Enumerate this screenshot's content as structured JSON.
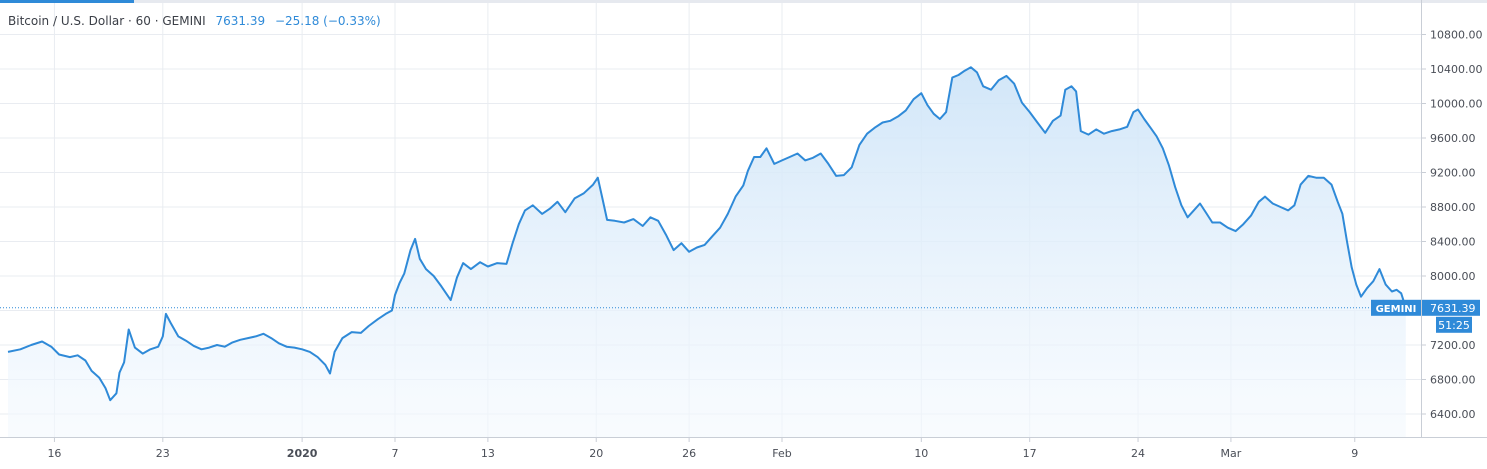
{
  "legend": {
    "symbol": "Bitcoin / U.S. Dollar · 60 · GEMINI",
    "last": "7631.39",
    "change": "−25.18 (−0.33%)"
  },
  "price_tag": {
    "exchange": "GEMINI",
    "price": "7631.39",
    "countdown": "51:25"
  },
  "colors": {
    "line": "#2f8ad8",
    "fill_top": "#cfe5f8",
    "fill_bottom": "#f4f9fe",
    "grid": "#e9ecf1",
    "tag_bg": "#2f8ad8",
    "tag_text": "#ffffff"
  },
  "chart_data": {
    "type": "area",
    "title": "",
    "xlabel": "",
    "ylabel": "",
    "ylim": [
      6150,
      11000
    ],
    "y_ticks": [
      6400,
      6800,
      7200,
      7600,
      8000,
      8400,
      8800,
      9200,
      9600,
      10000,
      10400,
      10800
    ],
    "y_tick_labels": [
      "6400.00",
      "6800.00",
      "7200.00",
      "7600.00",
      "8000.00",
      "8400.00",
      "8800.00",
      "9200.00",
      "9600.00",
      "10000.00",
      "10400.00",
      "10800.00"
    ],
    "x_ticks": [
      {
        "label": "16",
        "day": 2,
        "bold": false
      },
      {
        "label": "23",
        "day": 9,
        "bold": false
      },
      {
        "label": "2020",
        "day": 18,
        "bold": true
      },
      {
        "label": "7",
        "day": 24,
        "bold": false
      },
      {
        "label": "13",
        "day": 30,
        "bold": false
      },
      {
        "label": "20",
        "day": 37,
        "bold": false
      },
      {
        "label": "26",
        "day": 43,
        "bold": false
      },
      {
        "label": "Feb",
        "day": 49,
        "bold": false
      },
      {
        "label": "10",
        "day": 58,
        "bold": false
      },
      {
        "label": "17",
        "day": 65,
        "bold": false
      },
      {
        "label": "24",
        "day": 72,
        "bold": false
      },
      {
        "label": "Mar",
        "day": 78,
        "bold": false
      },
      {
        "label": "9",
        "day": 86,
        "bold": false
      }
    ],
    "x_range": [
      -1,
      89.3
    ],
    "series": [
      {
        "values": [
          [
            -1.0,
            7120
          ],
          [
            -0.2,
            7150
          ],
          [
            0.5,
            7200
          ],
          [
            1.2,
            7240
          ],
          [
            1.8,
            7180
          ],
          [
            2.3,
            7090
          ],
          [
            3.0,
            7060
          ],
          [
            3.5,
            7080
          ],
          [
            4.0,
            7020
          ],
          [
            4.4,
            6900
          ],
          [
            4.9,
            6820
          ],
          [
            5.3,
            6700
          ],
          [
            5.6,
            6560
          ],
          [
            6.0,
            6640
          ],
          [
            6.2,
            6880
          ],
          [
            6.5,
            7000
          ],
          [
            6.8,
            7380
          ],
          [
            7.2,
            7170
          ],
          [
            7.7,
            7100
          ],
          [
            8.2,
            7150
          ],
          [
            8.7,
            7180
          ],
          [
            9.0,
            7300
          ],
          [
            9.2,
            7560
          ],
          [
            9.5,
            7460
          ],
          [
            10.0,
            7300
          ],
          [
            10.5,
            7250
          ],
          [
            11.0,
            7190
          ],
          [
            11.5,
            7150
          ],
          [
            12.0,
            7170
          ],
          [
            12.5,
            7200
          ],
          [
            13.0,
            7180
          ],
          [
            13.5,
            7230
          ],
          [
            14.0,
            7260
          ],
          [
            14.5,
            7280
          ],
          [
            15.0,
            7300
          ],
          [
            15.5,
            7330
          ],
          [
            16.0,
            7280
          ],
          [
            16.5,
            7220
          ],
          [
            17.0,
            7180
          ],
          [
            17.5,
            7170
          ],
          [
            18.0,
            7150
          ],
          [
            18.5,
            7120
          ],
          [
            19.0,
            7060
          ],
          [
            19.5,
            6970
          ],
          [
            19.8,
            6870
          ],
          [
            20.1,
            7120
          ],
          [
            20.6,
            7280
          ],
          [
            21.2,
            7350
          ],
          [
            21.8,
            7340
          ],
          [
            22.3,
            7420
          ],
          [
            22.9,
            7500
          ],
          [
            23.4,
            7560
          ],
          [
            23.8,
            7600
          ],
          [
            24.0,
            7780
          ],
          [
            24.3,
            7920
          ],
          [
            24.6,
            8030
          ],
          [
            25.0,
            8300
          ],
          [
            25.3,
            8430
          ],
          [
            25.6,
            8200
          ],
          [
            26.0,
            8080
          ],
          [
            26.5,
            8000
          ],
          [
            27.0,
            7880
          ],
          [
            27.6,
            7720
          ],
          [
            28.0,
            7980
          ],
          [
            28.4,
            8150
          ],
          [
            28.9,
            8080
          ],
          [
            29.5,
            8160
          ],
          [
            30.0,
            8110
          ],
          [
            30.6,
            8150
          ],
          [
            31.2,
            8140
          ],
          [
            31.6,
            8380
          ],
          [
            32.0,
            8600
          ],
          [
            32.4,
            8760
          ],
          [
            32.9,
            8820
          ],
          [
            33.5,
            8720
          ],
          [
            34.0,
            8780
          ],
          [
            34.5,
            8860
          ],
          [
            35.0,
            8740
          ],
          [
            35.6,
            8900
          ],
          [
            36.2,
            8960
          ],
          [
            36.8,
            9060
          ],
          [
            37.1,
            9140
          ],
          [
            37.4,
            8900
          ],
          [
            37.7,
            8650
          ],
          [
            38.2,
            8640
          ],
          [
            38.8,
            8620
          ],
          [
            39.4,
            8660
          ],
          [
            40.0,
            8580
          ],
          [
            40.5,
            8680
          ],
          [
            41.0,
            8640
          ],
          [
            41.5,
            8480
          ],
          [
            42.0,
            8300
          ],
          [
            42.5,
            8380
          ],
          [
            43.0,
            8280
          ],
          [
            43.5,
            8330
          ],
          [
            44.0,
            8360
          ],
          [
            44.5,
            8460
          ],
          [
            45.0,
            8560
          ],
          [
            45.5,
            8720
          ],
          [
            46.0,
            8920
          ],
          [
            46.5,
            9050
          ],
          [
            46.8,
            9220
          ],
          [
            47.2,
            9380
          ],
          [
            47.6,
            9380
          ],
          [
            48.0,
            9480
          ],
          [
            48.5,
            9300
          ],
          [
            49.0,
            9340
          ],
          [
            49.5,
            9380
          ],
          [
            50.0,
            9420
          ],
          [
            50.5,
            9340
          ],
          [
            51.0,
            9370
          ],
          [
            51.5,
            9420
          ],
          [
            52.0,
            9300
          ],
          [
            52.5,
            9160
          ],
          [
            53.0,
            9170
          ],
          [
            53.5,
            9260
          ],
          [
            54.0,
            9520
          ],
          [
            54.5,
            9650
          ],
          [
            55.0,
            9720
          ],
          [
            55.5,
            9780
          ],
          [
            56.0,
            9800
          ],
          [
            56.5,
            9850
          ],
          [
            57.0,
            9920
          ],
          [
            57.5,
            10050
          ],
          [
            58.0,
            10120
          ],
          [
            58.4,
            9980
          ],
          [
            58.8,
            9880
          ],
          [
            59.2,
            9820
          ],
          [
            59.6,
            9900
          ],
          [
            60.0,
            10300
          ],
          [
            60.4,
            10330
          ],
          [
            60.8,
            10380
          ],
          [
            61.2,
            10420
          ],
          [
            61.6,
            10360
          ],
          [
            62.0,
            10200
          ],
          [
            62.5,
            10160
          ],
          [
            63.0,
            10270
          ],
          [
            63.5,
            10320
          ],
          [
            64.0,
            10230
          ],
          [
            64.5,
            10010
          ],
          [
            65.0,
            9900
          ],
          [
            65.5,
            9780
          ],
          [
            66.0,
            9660
          ],
          [
            66.5,
            9800
          ],
          [
            67.0,
            9860
          ],
          [
            67.3,
            10160
          ],
          [
            67.7,
            10200
          ],
          [
            68.0,
            10140
          ],
          [
            68.3,
            9680
          ],
          [
            68.8,
            9640
          ],
          [
            69.3,
            9700
          ],
          [
            69.8,
            9650
          ],
          [
            70.3,
            9680
          ],
          [
            70.8,
            9700
          ],
          [
            71.3,
            9730
          ],
          [
            71.7,
            9900
          ],
          [
            72.0,
            9930
          ],
          [
            72.4,
            9820
          ],
          [
            72.8,
            9720
          ],
          [
            73.2,
            9620
          ],
          [
            73.6,
            9480
          ],
          [
            74.0,
            9280
          ],
          [
            74.4,
            9030
          ],
          [
            74.8,
            8820
          ],
          [
            75.2,
            8680
          ],
          [
            75.6,
            8760
          ],
          [
            76.0,
            8840
          ],
          [
            76.4,
            8730
          ],
          [
            76.8,
            8620
          ],
          [
            77.3,
            8620
          ],
          [
            77.8,
            8560
          ],
          [
            78.3,
            8520
          ],
          [
            78.8,
            8600
          ],
          [
            79.3,
            8700
          ],
          [
            79.8,
            8860
          ],
          [
            80.2,
            8920
          ],
          [
            80.7,
            8840
          ],
          [
            81.2,
            8800
          ],
          [
            81.7,
            8760
          ],
          [
            82.1,
            8820
          ],
          [
            82.5,
            9060
          ],
          [
            83.0,
            9160
          ],
          [
            83.5,
            9140
          ],
          [
            84.0,
            9140
          ],
          [
            84.5,
            9060
          ],
          [
            84.9,
            8860
          ],
          [
            85.2,
            8720
          ],
          [
            85.5,
            8400
          ],
          [
            85.8,
            8100
          ],
          [
            86.1,
            7900
          ],
          [
            86.4,
            7760
          ],
          [
            86.8,
            7860
          ],
          [
            87.2,
            7940
          ],
          [
            87.6,
            8080
          ],
          [
            88.0,
            7900
          ],
          [
            88.4,
            7820
          ],
          [
            88.7,
            7840
          ],
          [
            89.0,
            7800
          ],
          [
            89.3,
            7631.39
          ]
        ]
      }
    ]
  }
}
